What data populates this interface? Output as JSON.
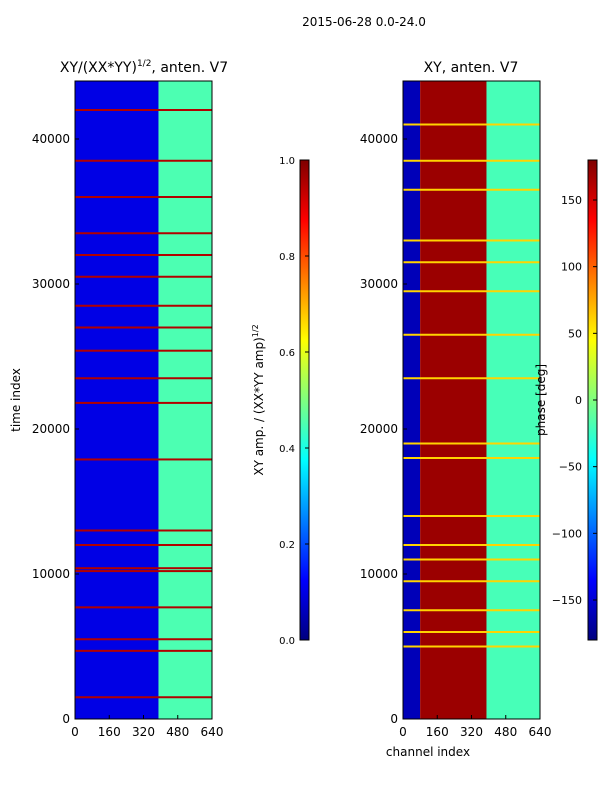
{
  "figure": {
    "suptitle": "2015-06-28 0.0-24.0"
  },
  "chart_data": [
    {
      "type": "heatmap",
      "title": "XY/(XX*YY)",
      "title_exponent": "1/2",
      "title_suffix": ", anten. V7",
      "xlabel": "",
      "ylabel": "time index",
      "xlim": [
        0,
        640
      ],
      "ylim": [
        0,
        44000
      ],
      "x_ticks": [
        0,
        160,
        320,
        480,
        640
      ],
      "y_ticks": [
        0,
        10000,
        20000,
        30000,
        40000
      ],
      "colormap": "jet",
      "colorbar": {
        "label": "XY amp. / (XX*YY amp)",
        "label_exponent": "1/2",
        "vmin": 0.0,
        "vmax": 1.0,
        "ticks": [
          0.0,
          0.2,
          0.4,
          0.6,
          0.8,
          1.0
        ],
        "tick_labels": [
          "0.0",
          "0.2",
          "0.4",
          "0.6",
          "0.8",
          "1.0"
        ]
      },
      "bands": [
        {
          "x0": 0,
          "x1": 390,
          "value": 0.1
        },
        {
          "x0": 390,
          "x1": 640,
          "value": 0.45
        }
      ],
      "hot_rows": [
        1500,
        4700,
        5500,
        7700,
        10200,
        10400,
        12000,
        13000,
        17900,
        21800,
        23500,
        25400,
        27000,
        28500,
        30500,
        32000,
        33500,
        36000,
        38500,
        42000
      ],
      "hot_value": 0.95
    },
    {
      "type": "heatmap",
      "title": "XY, anten. V7",
      "xlabel": "channel index",
      "ylabel": "",
      "xlim": [
        0,
        640
      ],
      "ylim": [
        0,
        44000
      ],
      "x_ticks": [
        0,
        160,
        320,
        480,
        640
      ],
      "y_ticks": [
        0,
        10000,
        20000,
        30000,
        40000
      ],
      "colormap": "jet",
      "colorbar": {
        "label": "phase [deg]",
        "vmin": -180,
        "vmax": 180,
        "ticks": [
          -150,
          -100,
          -50,
          0,
          50,
          100,
          150
        ],
        "tick_labels": [
          "−150",
          "−100",
          "−50",
          "0",
          "50",
          "100",
          "150"
        ]
      },
      "bands": [
        {
          "x0": 0,
          "x1": 80,
          "value": -160
        },
        {
          "x0": 80,
          "x1": 390,
          "value": 170
        },
        {
          "x0": 390,
          "x1": 640,
          "value": -20
        }
      ],
      "hot_rows": [
        5000,
        6000,
        7500,
        9500,
        11000,
        12000,
        14000,
        18000,
        19000,
        23500,
        26500,
        29500,
        31500,
        33000,
        36500,
        38500,
        41000
      ],
      "hot_value": 60
    }
  ],
  "colors": {
    "jet": [
      "#00007f",
      "#0000ff",
      "#007fff",
      "#00ffff",
      "#7fff7f",
      "#ffff00",
      "#ff7f00",
      "#ff0000",
      "#7f0000"
    ]
  }
}
